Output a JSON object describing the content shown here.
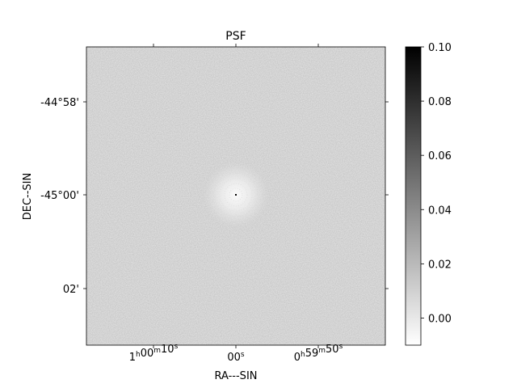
{
  "chart_data": {
    "type": "heatmap",
    "title": "PSF",
    "xlabel": "RA---SIN",
    "ylabel": "DEC--SIN",
    "x_ticks": [
      {
        "h": "1",
        "m": "00",
        "s": "10",
        "kind": "hms"
      },
      {
        "s": "00",
        "kind": "s"
      },
      {
        "h": "0",
        "m": "59",
        "s": "50",
        "kind": "hms"
      }
    ],
    "y_ticks": [
      "-44°58'",
      "-45°00'",
      "02'"
    ],
    "colorbar": {
      "ticks": [
        "0.10",
        "0.08",
        "0.06",
        "0.04",
        "0.02",
        "0.00"
      ],
      "tick_values": [
        0.1,
        0.08,
        0.06,
        0.04,
        0.02,
        0.0
      ],
      "vmin": -0.01,
      "vmax": 0.1,
      "cmap": "gray_r"
    },
    "image": {
      "background_value": 0.0,
      "peak_value": 0.1,
      "description_source": "point spread function centered at RA 1h00m00s, Dec -45°00'"
    },
    "colors": {
      "background_fill": "#e8e8e8",
      "peak": "#000000"
    }
  }
}
